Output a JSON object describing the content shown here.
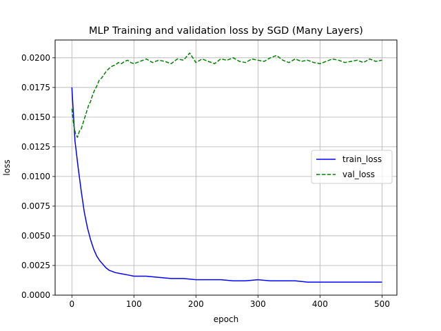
{
  "chart_data": {
    "type": "line",
    "title": "MLP Training and validation loss by SGD (Many Layers)",
    "xlabel": "epoch",
    "ylabel": "loss",
    "xlim": [
      -27,
      524
    ],
    "ylim": [
      0,
      0.0215
    ],
    "xticks": [
      0,
      100,
      200,
      300,
      400,
      500
    ],
    "xtick_labels": [
      "0",
      "100",
      "200",
      "300",
      "400",
      "500"
    ],
    "yticks": [
      0,
      0.0025,
      0.005,
      0.0075,
      0.01,
      0.0125,
      0.015,
      0.0175,
      0.02
    ],
    "ytick_labels": [
      "0.0000",
      "0.0025",
      "0.0050",
      "0.0075",
      "0.0100",
      "0.0125",
      "0.0150",
      "0.0175",
      "0.0200"
    ],
    "grid": true,
    "legend_position": "center-right",
    "series": [
      {
        "name": "train_loss",
        "color": "#0000ff",
        "style": "solid",
        "x": [
          0,
          5,
          10,
          15,
          20,
          25,
          30,
          35,
          40,
          45,
          50,
          55,
          60,
          65,
          70,
          80,
          90,
          100,
          120,
          140,
          160,
          180,
          200,
          220,
          240,
          260,
          280,
          300,
          320,
          340,
          360,
          380,
          400,
          420,
          440,
          460,
          480,
          500
        ],
        "values": [
          0.0175,
          0.013,
          0.0108,
          0.0088,
          0.007,
          0.0057,
          0.0047,
          0.0039,
          0.0033,
          0.0029,
          0.0026,
          0.0023,
          0.0021,
          0.002,
          0.0019,
          0.0018,
          0.0017,
          0.0016,
          0.0016,
          0.0015,
          0.0014,
          0.0014,
          0.0013,
          0.0013,
          0.0013,
          0.0012,
          0.0012,
          0.0013,
          0.0012,
          0.0012,
          0.0012,
          0.0011,
          0.0011,
          0.0011,
          0.0011,
          0.0011,
          0.0011,
          0.0011
        ]
      },
      {
        "name": "val_loss",
        "color": "#008000",
        "style": "dashed",
        "x": [
          0,
          3,
          6,
          9,
          12,
          15,
          18,
          21,
          24,
          27,
          30,
          33,
          36,
          40,
          44,
          48,
          52,
          56,
          60,
          65,
          70,
          75,
          80,
          85,
          90,
          95,
          100,
          110,
          120,
          130,
          140,
          150,
          160,
          170,
          180,
          190,
          200,
          210,
          220,
          230,
          240,
          250,
          260,
          270,
          280,
          290,
          300,
          310,
          320,
          330,
          340,
          350,
          360,
          370,
          380,
          390,
          400,
          410,
          420,
          430,
          440,
          450,
          460,
          470,
          480,
          490,
          500
        ],
        "values": [
          0.0157,
          0.0143,
          0.0136,
          0.0133,
          0.0138,
          0.014,
          0.0145,
          0.015,
          0.0155,
          0.016,
          0.0163,
          0.0168,
          0.0172,
          0.0176,
          0.0181,
          0.0183,
          0.0186,
          0.0189,
          0.0191,
          0.0193,
          0.0194,
          0.0196,
          0.0195,
          0.0197,
          0.0198,
          0.0196,
          0.0195,
          0.0197,
          0.0199,
          0.0196,
          0.0198,
          0.0197,
          0.0195,
          0.0199,
          0.0198,
          0.0204,
          0.0196,
          0.0199,
          0.0197,
          0.0195,
          0.0199,
          0.0198,
          0.02,
          0.0197,
          0.0196,
          0.0199,
          0.0198,
          0.0197,
          0.02,
          0.0202,
          0.0198,
          0.0196,
          0.0199,
          0.0197,
          0.0198,
          0.0196,
          0.0195,
          0.0197,
          0.0199,
          0.0198,
          0.0196,
          0.0197,
          0.0198,
          0.0196,
          0.0199,
          0.0197,
          0.0198
        ]
      }
    ]
  }
}
